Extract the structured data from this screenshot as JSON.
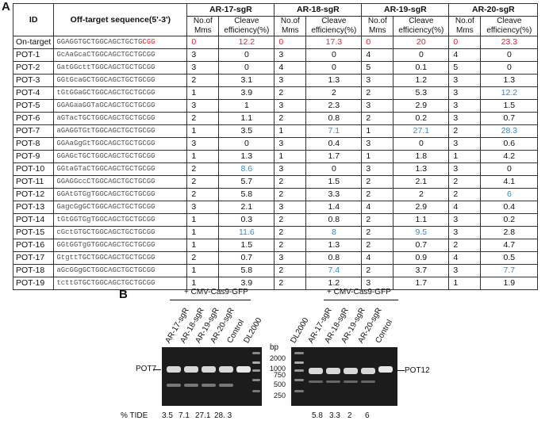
{
  "panel_a": {
    "letter": "A",
    "headers": {
      "id": "ID",
      "sequence": "Off-target sequence(5'-3')",
      "groups": [
        "AR-17-sgR",
        "AR-18-sgR",
        "AR-19-sgR",
        "AR-20-sgR"
      ],
      "sub_mms": "No.of Mms",
      "sub_eff": "Cleave efficiency(%)"
    },
    "rows": [
      {
        "id": "On-target",
        "seq_main": "GGAGGTGCTGGCAGCTGCTG",
        "seq_pam": "CGG",
        "mms": [
          "0",
          "0",
          "0",
          "0"
        ],
        "eff": [
          "12.2",
          "17.3",
          "20",
          "23.3"
        ],
        "mms_color": [
          "red",
          "red",
          "red",
          "red"
        ],
        "eff_color": [
          "red",
          "red",
          "red",
          "red"
        ]
      },
      {
        "id": "POT-1",
        "seq_main": "GcAaGcaCTGGCAGCTGCTGCGG",
        "seq_pam": "",
        "mms": [
          "3",
          "3",
          "4",
          "4"
        ],
        "eff": [
          "0",
          "0",
          "0",
          "0"
        ]
      },
      {
        "id": "POT-2",
        "seq_main": "GatGGcttTGGCAGCTGCTGCGG",
        "seq_pam": "",
        "mms": [
          "3",
          "4",
          "5",
          "5"
        ],
        "eff": [
          "0",
          "0",
          "0.1",
          "0"
        ]
      },
      {
        "id": "POT-3",
        "seq_main": "GGtGcaGCTGGCAGCTGCTGCGG",
        "seq_pam": "",
        "mms": [
          "2",
          "3",
          "3",
          "3"
        ],
        "eff": [
          "3.1",
          "1.3",
          "1.2",
          "1.3"
        ]
      },
      {
        "id": "POT-4",
        "seq_main": "tGtGGaGCTGGCAGCTGCTGCGG",
        "seq_pam": "",
        "mms": [
          "1",
          "2",
          "2",
          "3"
        ],
        "eff": [
          "3.9",
          "2",
          "5.3",
          "12.2"
        ],
        "eff_color": [
          "",
          "",
          "",
          "blue"
        ]
      },
      {
        "id": "POT-5",
        "seq_main": "GGAGaaGGTaGCAGCTGCTGCGG",
        "seq_pam": "",
        "mms": [
          "3",
          "3",
          "3",
          "3"
        ],
        "eff": [
          "1",
          "2.3",
          "2.9",
          "1.5"
        ]
      },
      {
        "id": "POT-6",
        "seq_main": "aGTacTGCTGGCAGCTGCTGCGG",
        "seq_pam": "",
        "mms": [
          "2",
          "2",
          "2",
          "3"
        ],
        "eff": [
          "1.1",
          "0.8",
          "0.2",
          "0.7"
        ]
      },
      {
        "id": "POT-7",
        "seq_main": "aGAGGTGtTGGCAGCTGCTGCGG",
        "seq_pam": "",
        "mms": [
          "1",
          "1",
          "1",
          "2"
        ],
        "eff": [
          "3.5",
          "7.1",
          "27.1",
          "28.3"
        ],
        "eff_color": [
          "",
          "blue",
          "blue",
          "blue"
        ]
      },
      {
        "id": "POT-8",
        "seq_main": "GGAaGgGtTGGCAGCTGCTGCGG",
        "seq_pam": "",
        "mms": [
          "3",
          "3",
          "3",
          "3"
        ],
        "eff": [
          "0",
          "0.4",
          "0",
          "0.6"
        ]
      },
      {
        "id": "POT-9",
        "seq_main": "GGAGcTGCTGGCAGCTGCTGCGG",
        "seq_pam": "",
        "mms": [
          "1",
          "1",
          "1",
          "1"
        ],
        "eff": [
          "1.3",
          "1.7",
          "1.8",
          "4.2"
        ]
      },
      {
        "id": "POT-10",
        "seq_main": "GGtaGTaCTGGCAGCTGCTGCGG",
        "seq_pam": "",
        "mms": [
          "2",
          "3",
          "3",
          "3"
        ],
        "eff": [
          "8.6",
          "0",
          "1.3",
          "0"
        ],
        "eff_color": [
          "blue",
          "",
          "",
          ""
        ]
      },
      {
        "id": "POT-11",
        "seq_main": "GGAGGccCTGGCAGCTGCTGCGG",
        "seq_pam": "",
        "mms": [
          "2",
          "2",
          "2",
          "2"
        ],
        "eff": [
          "5.7",
          "1.5",
          "2.1",
          "4.1"
        ]
      },
      {
        "id": "POT-12",
        "seq_main": "GGAtGTGgTGGCAGCTGCTGCGG",
        "seq_pam": "",
        "mms": [
          "2",
          "2",
          "2",
          "2"
        ],
        "eff": [
          "5.8",
          "3.3",
          "2",
          "6"
        ],
        "eff_color": [
          "",
          "",
          "",
          "blue"
        ]
      },
      {
        "id": "POT-13",
        "seq_main": "GagcGgGCTGGCAGCTGCTGCGG",
        "seq_pam": "",
        "mms": [
          "3",
          "3",
          "4",
          "4"
        ],
        "eff": [
          "2.1",
          "1.4",
          "2.9",
          "0.4"
        ]
      },
      {
        "id": "POT-14",
        "seq_main": "tGtGGTGgTGGCAGCTGCTGCGG",
        "seq_pam": "",
        "mms": [
          "1",
          "2",
          "2",
          "3"
        ],
        "eff": [
          "0.3",
          "0.8",
          "1.1",
          "0.2"
        ]
      },
      {
        "id": "POT-15",
        "seq_main": "cGctGTGCTGGCAGCTGCTGCGG",
        "seq_pam": "",
        "mms": [
          "1",
          "2",
          "2",
          "3"
        ],
        "eff": [
          "11.6",
          "8",
          "9.5",
          "2.8"
        ],
        "eff_color": [
          "blue",
          "blue",
          "blue",
          ""
        ]
      },
      {
        "id": "POT-16",
        "seq_main": "GGtGGTgGTGGCAGCTGCTGCGG",
        "seq_pam": "",
        "mms": [
          "1",
          "2",
          "2",
          "2"
        ],
        "eff": [
          "1.5",
          "1.3",
          "0.7",
          "4.7"
        ]
      },
      {
        "id": "POT-17",
        "seq_main": "GtgttTGCTGGCAGCTGCTGCGG",
        "seq_pam": "",
        "mms": [
          "2",
          "3",
          "4",
          "4"
        ],
        "eff": [
          "0.7",
          "0.8",
          "0.9",
          "0.5"
        ]
      },
      {
        "id": "POT-18",
        "seq_main": "aGcGGgGCTGGCAGCTGCTGCGG",
        "seq_pam": "",
        "mms": [
          "1",
          "2",
          "2",
          "3"
        ],
        "eff": [
          "5.8",
          "7.4",
          "3.7",
          "7.7"
        ],
        "eff_color": [
          "",
          "blue",
          "",
          "blue"
        ]
      },
      {
        "id": "POT-19",
        "seq_main": "tcttGTGCTGGCAGCTGCTGCGG",
        "seq_pam": "",
        "mms": [
          "1",
          "2",
          "3",
          "1"
        ],
        "eff": [
          "3.9",
          "1.2",
          "1.7",
          "1.9"
        ]
      }
    ]
  },
  "panel_b": {
    "letter": "B",
    "left_title": "+ CMV-Cas9-GFP",
    "right_title": "+ CMV-Cas9-GFP",
    "left_lanes": [
      "AR-17-sgR",
      "AR-18-sgR",
      "AR-19-sgR",
      "AR-20-sgR",
      "Control",
      "DL2000"
    ],
    "right_lanes": [
      "DL2000",
      "AR-17-sgR",
      "AR-18-sgR",
      "AR-19-sgR",
      "AR-20-sgR",
      "Control"
    ],
    "left_gel_label": "POT7",
    "right_gel_label": "POT12",
    "bp_label": "bp",
    "ladder": [
      "2000",
      "1000",
      "750",
      "500",
      "250"
    ],
    "tide_label": "% TIDE",
    "left_tide": [
      "3.5",
      "7.1",
      "27.1",
      "28. 3"
    ],
    "right_tide": [
      "5.8",
      "3.3",
      "2",
      "6"
    ]
  }
}
